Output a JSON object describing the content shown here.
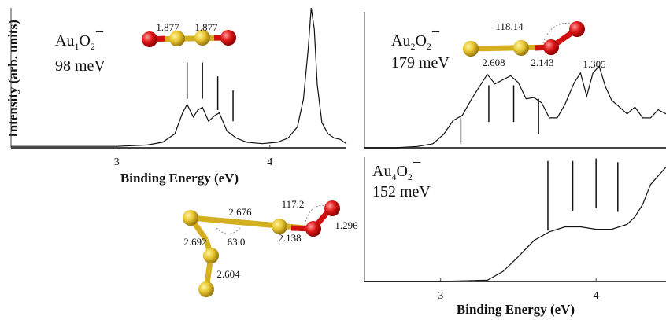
{
  "y_label": "Intensity (arb. units)",
  "chart_data": [
    {
      "type": "line",
      "species": [
        "Au",
        "1",
        "O",
        "2",
        "−"
      ],
      "energy": "98 meV",
      "xlabel": "Binding Energy (eV)",
      "xlim": [
        2.31,
        4.5
      ],
      "xticks": [
        3,
        4
      ],
      "ylim": [
        0,
        1
      ],
      "series": [
        {
          "color": "#111111",
          "x": [
            2.31,
            2.5,
            2.8,
            3.0,
            3.2,
            3.3,
            3.38,
            3.43,
            3.46,
            3.5,
            3.53,
            3.56,
            3.6,
            3.64,
            3.67,
            3.72,
            3.78,
            3.85,
            3.95,
            4.05,
            4.12,
            4.18,
            4.22,
            4.25,
            4.27,
            4.29,
            4.31,
            4.34,
            4.38,
            4.42,
            4.46,
            4.5
          ],
          "values": [
            0.01,
            0.01,
            0.01,
            0.01,
            0.02,
            0.04,
            0.1,
            0.25,
            0.31,
            0.22,
            0.27,
            0.29,
            0.19,
            0.23,
            0.25,
            0.12,
            0.07,
            0.04,
            0.03,
            0.04,
            0.07,
            0.15,
            0.35,
            0.7,
            1.0,
            0.85,
            0.45,
            0.18,
            0.1,
            0.07,
            0.06,
            0.03
          ]
        }
      ],
      "sticks": {
        "x": [
          3.46,
          3.56,
          3.66,
          3.76
        ],
        "top": [
          0.61,
          0.61,
          0.51,
          0.41
        ],
        "bottom": [
          0.35,
          0.35,
          0.27,
          0.19
        ]
      }
    },
    {
      "type": "line",
      "species": [
        "Au",
        "2",
        "O",
        "2",
        "−"
      ],
      "energy": "179 meV",
      "xlim": [
        2.51,
        4.45
      ],
      "ylim": [
        0,
        1
      ],
      "series": [
        {
          "color": "#111111",
          "x": [
            2.51,
            2.7,
            2.85,
            2.95,
            3.02,
            3.08,
            3.14,
            3.2,
            3.25,
            3.3,
            3.35,
            3.4,
            3.45,
            3.5,
            3.55,
            3.6,
            3.65,
            3.7,
            3.75,
            3.8,
            3.86,
            3.9,
            3.94,
            3.98,
            4.02,
            4.06,
            4.1,
            4.15,
            4.2,
            4.25,
            4.3,
            4.35,
            4.4,
            4.45
          ],
          "values": [
            0,
            0,
            0.01,
            0.03,
            0.1,
            0.2,
            0.24,
            0.36,
            0.45,
            0.54,
            0.47,
            0.5,
            0.53,
            0.48,
            0.36,
            0.37,
            0.33,
            0.22,
            0.22,
            0.32,
            0.48,
            0.55,
            0.38,
            0.55,
            0.6,
            0.45,
            0.35,
            0.3,
            0.25,
            0.3,
            0.22,
            0.22,
            0.28,
            0.25
          ]
        }
      ],
      "sticks": {
        "x": [
          3.13,
          3.31,
          3.47,
          3.63
        ],
        "top": [
          0.22,
          0.46,
          0.46,
          0.36
        ],
        "bottom": [
          0.03,
          0.19,
          0.19,
          0.1
        ]
      }
    },
    {
      "type": "line",
      "species": [
        "Au",
        "4",
        "O",
        "2",
        "−"
      ],
      "energy": "152 meV",
      "xlabel": "Binding Energy (eV)",
      "xlim": [
        2.51,
        4.45
      ],
      "xticks": [
        3,
        4
      ],
      "ylim": [
        0,
        1
      ],
      "series": [
        {
          "color": "#111111",
          "x": [
            2.51,
            3.0,
            3.3,
            3.4,
            3.5,
            3.6,
            3.7,
            3.8,
            3.9,
            4.0,
            4.1,
            4.2,
            4.25,
            4.3,
            4.35,
            4.4,
            4.45
          ],
          "values": [
            0,
            0,
            0.01,
            0.08,
            0.2,
            0.33,
            0.4,
            0.44,
            0.44,
            0.42,
            0.42,
            0.46,
            0.52,
            0.62,
            0.78,
            0.85,
            0.92
          ]
        }
      ],
      "sticks": {
        "x": [
          3.69,
          3.85,
          4.0,
          4.14
        ],
        "top": [
          0.97,
          0.97,
          0.99,
          0.96
        ],
        "bottom": [
          0.41,
          0.57,
          0.59,
          0.56
        ]
      }
    }
  ],
  "structures": {
    "au1o2": [
      "1.877",
      "1.877"
    ],
    "au2o2": [
      "118.14",
      "2.608",
      "2.143",
      "1.305"
    ],
    "au4o2": [
      "2.676",
      "117.2",
      "1.296",
      "2.692",
      "63.0",
      "2.138",
      "2.604"
    ]
  }
}
